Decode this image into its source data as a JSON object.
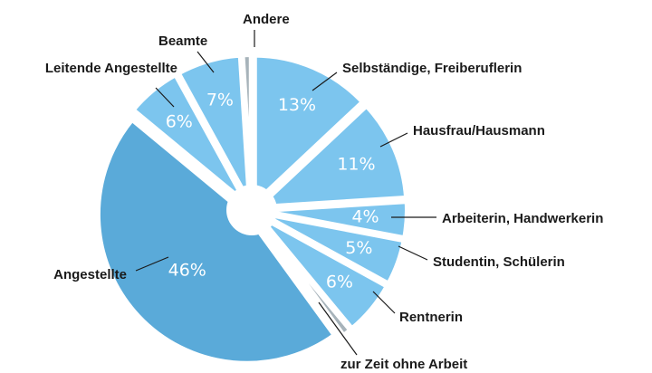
{
  "chart_data": {
    "type": "pie",
    "categories": [
      "Selbständige, Freiberuflerin",
      "Hausfrau/Hausmann",
      "Arbeiterin, Handwerkerin",
      "Studentin, Schülerin",
      "Rentnerin",
      "zur Zeit ohne Arbeit",
      "Angestellte",
      "Leitende Angestellte",
      "Beamte",
      "Andere"
    ],
    "values": [
      13,
      11,
      4,
      5,
      6,
      1,
      46,
      6,
      7,
      1
    ],
    "value_labels": [
      "13%",
      "11%",
      "4%",
      "5%",
      "6%",
      null,
      "46%",
      "6%",
      "7%",
      null
    ],
    "colors": [
      "#7cc5ee",
      "#7cc5ee",
      "#7cc5ee",
      "#7cc5ee",
      "#7cc5ee",
      "#a7b3ba",
      "#5aaad9",
      "#7cc5ee",
      "#7cc5ee",
      "#a7b3ba"
    ]
  }
}
